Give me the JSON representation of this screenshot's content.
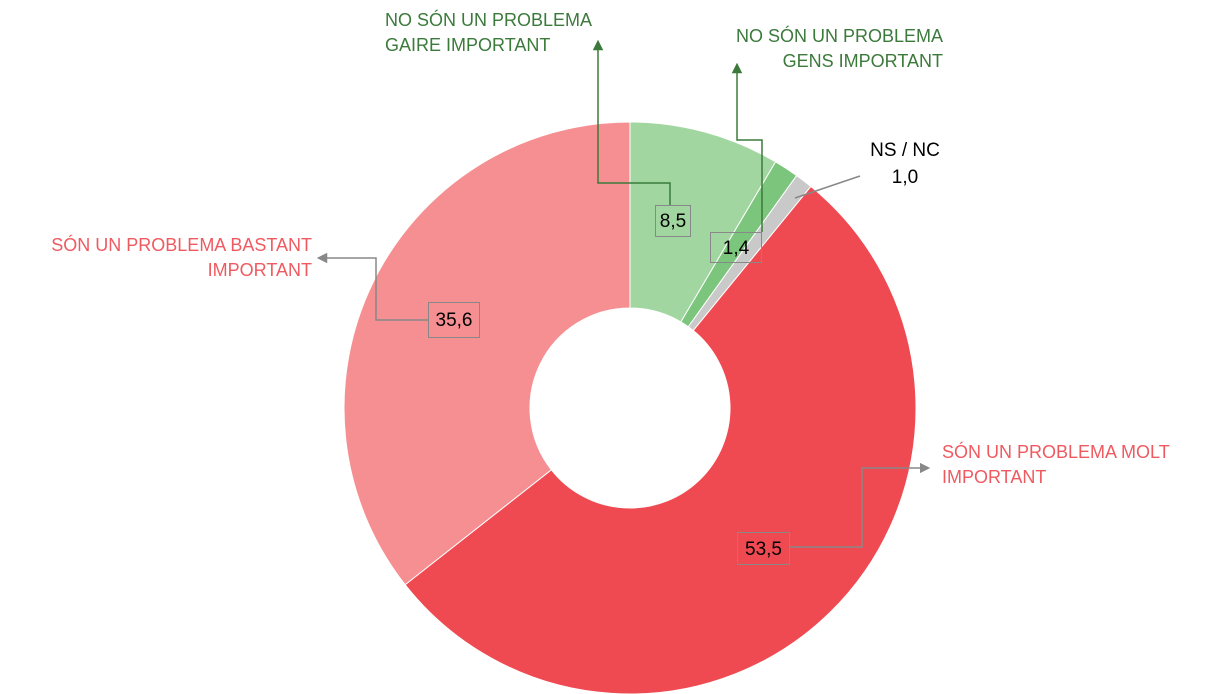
{
  "chart_data": {
    "type": "donut",
    "categories": [
      "NO SÓN UN PROBLEMA GAIRE IMPORTANT",
      "NO SÓN UN PROBLEMA GENS IMPORTANT",
      "NS / NC",
      "SÓN UN PROBLEMA MOLT IMPORTANT",
      "SÓN UN PROBLEMA BASTANT IMPORTANT"
    ],
    "values": [
      8.5,
      1.4,
      1.0,
      53.5,
      35.6
    ],
    "value_labels": [
      "8,5",
      "1,4",
      "1,0",
      "53,5",
      "35,6"
    ],
    "colors": [
      "#a2d6a1",
      "#7cc57c",
      "#c9c9c9",
      "#ef4a51",
      "#f58f92"
    ],
    "label_colors": [
      "#3b7a3b",
      "#3b7a3b",
      "#000000",
      "#ef5a60",
      "#ef5a60"
    ]
  }
}
